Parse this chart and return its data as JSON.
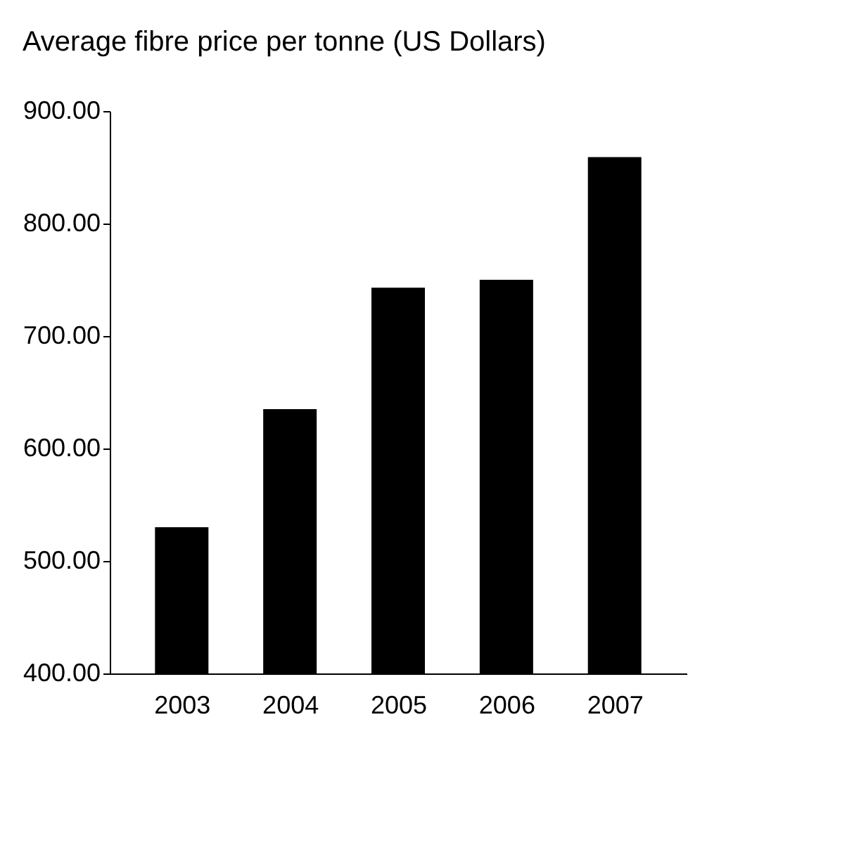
{
  "chart_data": {
    "type": "bar",
    "title": "Average fibre price per tonne (US Dollars)",
    "categories": [
      "2003",
      "2004",
      "2005",
      "2006",
      "2007"
    ],
    "values": [
      530,
      635,
      743,
      750,
      859
    ],
    "color": "#000000",
    "ylim": [
      400,
      900
    ],
    "yticks": [
      {
        "value": 400,
        "label": "400.00"
      },
      {
        "value": 500,
        "label": "500.00"
      },
      {
        "value": 600,
        "label": "600.00"
      },
      {
        "value": 700,
        "label": "700.00"
      },
      {
        "value": 800,
        "label": "800.00"
      },
      {
        "value": 900,
        "label": "900.00"
      }
    ],
    "grid": false
  }
}
